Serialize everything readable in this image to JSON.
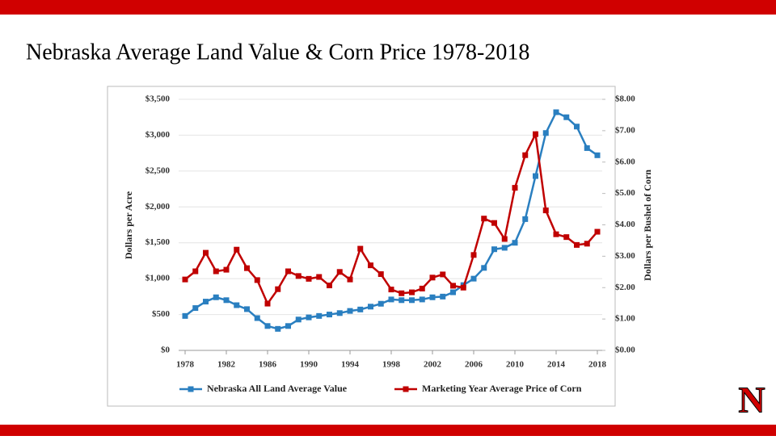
{
  "title": "Nebraska Average Land Value & Corn Price 1978-2018",
  "logo": "N",
  "chart_data": {
    "type": "line",
    "ylabel": "Dollars per Acre",
    "y2label": "Dollars per Bushel of Corn",
    "x": [
      1978,
      1979,
      1980,
      1981,
      1982,
      1983,
      1984,
      1985,
      1986,
      1987,
      1988,
      1989,
      1990,
      1991,
      1992,
      1993,
      1994,
      1995,
      1996,
      1997,
      1998,
      1999,
      2000,
      2001,
      2002,
      2003,
      2004,
      2005,
      2006,
      2007,
      2008,
      2009,
      2010,
      2011,
      2012,
      2013,
      2014,
      2015,
      2016,
      2017,
      2018
    ],
    "xlim": [
      1978,
      2018
    ],
    "xticks": [
      1978,
      1982,
      1986,
      1990,
      1994,
      1998,
      2002,
      2006,
      2010,
      2014,
      2018
    ],
    "ylim": [
      0,
      3500
    ],
    "yticks": [
      {
        "value": 0,
        "label": "$0"
      },
      {
        "value": 500,
        "label": "$500"
      },
      {
        "value": 1000,
        "label": "$1,000"
      },
      {
        "value": 1500,
        "label": "$1,500"
      },
      {
        "value": 2000,
        "label": "$2,000"
      },
      {
        "value": 2500,
        "label": "$2,500"
      },
      {
        "value": 3000,
        "label": "$3,000"
      },
      {
        "value": 3500,
        "label": "$3,500"
      }
    ],
    "y2lim": [
      0,
      8
    ],
    "y2ticks": [
      {
        "value": 0,
        "label": "$0.00"
      },
      {
        "value": 1,
        "label": "$1.00"
      },
      {
        "value": 2,
        "label": "$2.00"
      },
      {
        "value": 3,
        "label": "$3.00"
      },
      {
        "value": 4,
        "label": "$4.00"
      },
      {
        "value": 5,
        "label": "$5.00"
      },
      {
        "value": 6,
        "label": "$6.00"
      },
      {
        "value": 7,
        "label": "$7.00"
      },
      {
        "value": 8,
        "label": "$8.00"
      }
    ],
    "grid": true,
    "series": [
      {
        "name": "Nebraska All Land Average Value",
        "color": "#2a7fc0",
        "axis": "y",
        "values": [
          480,
          590,
          680,
          740,
          700,
          630,
          575,
          450,
          340,
          300,
          340,
          430,
          460,
          480,
          500,
          520,
          550,
          570,
          610,
          650,
          710,
          700,
          700,
          710,
          740,
          750,
          810,
          910,
          1000,
          1150,
          1410,
          1430,
          1500,
          1830,
          2430,
          3030,
          3320,
          3250,
          3120,
          2820,
          2720
        ]
      },
      {
        "name": "Marketing Year Average Price of Corn",
        "color": "#c00000",
        "axis": "y2",
        "values": [
          2.26,
          2.52,
          3.11,
          2.52,
          2.57,
          3.21,
          2.62,
          2.24,
          1.49,
          1.95,
          2.52,
          2.37,
          2.28,
          2.34,
          2.07,
          2.5,
          2.26,
          3.24,
          2.71,
          2.43,
          1.94,
          1.82,
          1.85,
          1.97,
          2.32,
          2.42,
          2.06,
          2.0,
          3.04,
          4.2,
          4.06,
          3.55,
          5.18,
          6.22,
          6.89,
          4.46,
          3.7,
          3.61,
          3.36,
          3.4,
          3.78
        ]
      }
    ]
  }
}
